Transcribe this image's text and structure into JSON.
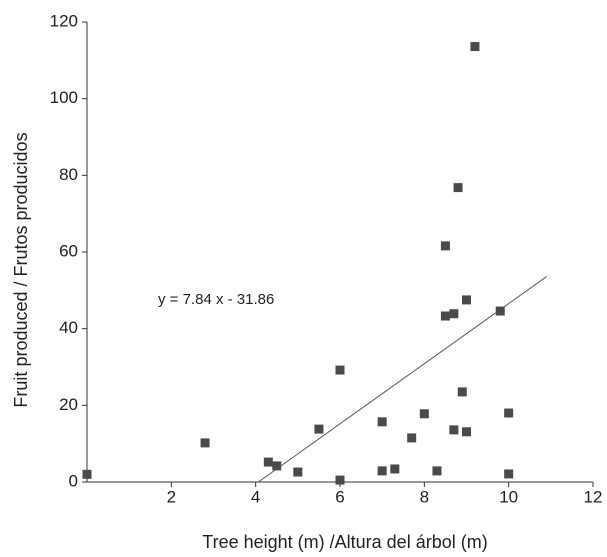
{
  "chart_data": {
    "type": "scatter",
    "x_label": "Tree height (m) /Altura del árbol (m)",
    "y_label": "Fruit produced / Frutos producidos",
    "annotation": "y = 7.84 x - 31.86",
    "xlim": [
      0,
      12
    ],
    "xticks": [
      2,
      4,
      6,
      8,
      10,
      12
    ],
    "ylim": [
      0,
      120
    ],
    "yticks": [
      0,
      20,
      40,
      60,
      80,
      100,
      120
    ],
    "color": "#4a4a4a",
    "x": [
      0,
      2.8,
      4.3,
      4.5,
      5.0,
      5.5,
      6.0,
      6.0,
      7.0,
      7.0,
      7.3,
      7.7,
      8.0,
      8.3,
      8.5,
      8.5,
      8.7,
      8.7,
      8.8,
      8.9,
      9.0,
      9.0,
      9.2,
      9.8,
      10.0,
      10.0
    ],
    "values": [
      2,
      10.2,
      5.2,
      4.2,
      2.6,
      13.8,
      29.2,
      0.5,
      15.7,
      2.9,
      3.4,
      11.5,
      17.8,
      2.9,
      43.3,
      61.6,
      43.9,
      13.6,
      76.8,
      23.5,
      47.5,
      13.1,
      113.6,
      44.6,
      18.0,
      2.1
    ],
    "trendline": {
      "slope": 7.84,
      "intercept": -31.86,
      "x_range": [
        4.06,
        10.9
      ]
    }
  }
}
